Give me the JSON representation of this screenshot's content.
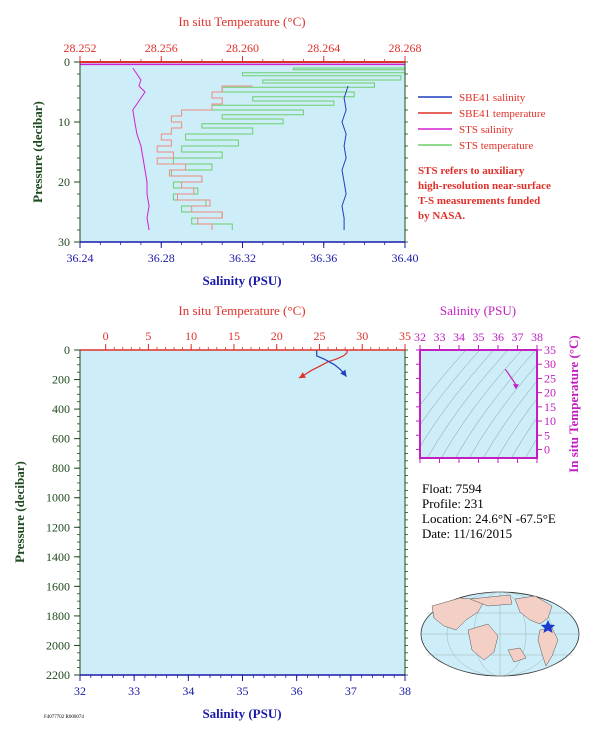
{
  "top_chart": {
    "top_axis_label": "In situ Temperature (°C)",
    "bottom_axis_label": "Salinity (PSU)",
    "left_axis_label": "Pressure (decibar)",
    "temp_ticks": [
      "28.252",
      "28.256",
      "28.260",
      "28.264",
      "28.268"
    ],
    "sal_ticks": [
      "36.24",
      "36.28",
      "36.32",
      "36.36",
      "36.40"
    ],
    "pres_ticks": [
      "0",
      "10",
      "20",
      "30"
    ],
    "legend": [
      {
        "label": "SBE41 salinity",
        "color": "#1f3fbf"
      },
      {
        "label": "SBE41 temperature",
        "color": "#e0302a"
      },
      {
        "label": "STS salinity",
        "color": "#d21ed2"
      },
      {
        "label": "STS temperature",
        "color": "#6ccf6c"
      }
    ],
    "note": [
      "STS refers to auxiliary",
      "high-resolution near-surface",
      "T-S measurements funded",
      "by NASA."
    ]
  },
  "bottom_chart": {
    "top_axis_label": "In situ Temperature (°C)",
    "bottom_axis_label": "Salinity (PSU)",
    "left_axis_label": "Pressure (decibar)",
    "temp_ticks": [
      "0",
      "5",
      "10",
      "15",
      "20",
      "25",
      "30",
      "35"
    ],
    "sal_ticks": [
      "32",
      "33",
      "34",
      "35",
      "36",
      "37",
      "38"
    ],
    "pres_ticks": [
      "0",
      "200",
      "400",
      "600",
      "800",
      "1000",
      "1200",
      "1400",
      "1600",
      "1800",
      "2000",
      "2200"
    ]
  },
  "ts_inset": {
    "top_axis_label": "Salinity (PSU)",
    "right_axis_label": "In situ Temperature (°C)",
    "sal_ticks": [
      "32",
      "33",
      "34",
      "35",
      "36",
      "37",
      "38"
    ],
    "temp_ticks": [
      "0",
      "5",
      "10",
      "15",
      "20",
      "25",
      "30",
      "35"
    ]
  },
  "float_info": {
    "float": "Float:  7594",
    "profile": "Profile:  231",
    "location": "Location:  24.6°N  -67.5°E",
    "date": "Date:  11/16/2015"
  },
  "footer_code": "F4077702 R000074",
  "colors": {
    "plot_bg": "#cdeef8",
    "temp_axis": "#e0302a",
    "sal_axis": "#1a1aa8",
    "pres_axis": "#1f4a1f",
    "inset_axis": "#c21ec2",
    "sbe_sal": "#1f3fbf",
    "sbe_temp": "#e0302a",
    "sts_sal": "#d21ed2",
    "sts_temp": "#6ccf6c",
    "sbe_temp_top": "#f08a82"
  },
  "chart_data": [
    {
      "type": "line",
      "id": "top-near-surface",
      "xlabel_top": "In situ Temperature (°C)",
      "xlabel_bottom": "Salinity (PSU)",
      "ylabel": "Pressure (decibar)",
      "temp_range": [
        28.252,
        28.268
      ],
      "sal_range": [
        36.24,
        36.4
      ],
      "pres_range": [
        0,
        30
      ],
      "series": [
        {
          "name": "SBE41 salinity",
          "axis": "salinity",
          "points": [
            [
              36.372,
              4
            ],
            [
              36.37,
              6
            ],
            [
              36.371,
              8
            ],
            [
              36.369,
              10
            ],
            [
              36.371,
              12
            ],
            [
              36.37,
              14
            ],
            [
              36.371,
              16
            ],
            [
              36.369,
              18
            ],
            [
              36.37,
              20
            ],
            [
              36.371,
              22
            ],
            [
              36.369,
              24
            ],
            [
              36.37,
              26
            ],
            [
              36.37,
              28
            ]
          ]
        },
        {
          "name": "SBE41 temperature",
          "axis": "temperature",
          "points": [
            [
              28.2605,
              4
            ],
            [
              28.259,
              5
            ],
            [
              28.2585,
              6
            ],
            [
              28.259,
              7
            ],
            [
              28.2585,
              8
            ],
            [
              28.257,
              9
            ],
            [
              28.2565,
              10
            ],
            [
              28.257,
              11
            ],
            [
              28.2565,
              12
            ],
            [
              28.256,
              13
            ],
            [
              28.2565,
              14
            ],
            [
              28.2558,
              15
            ],
            [
              28.2566,
              16
            ],
            [
              28.2558,
              17
            ],
            [
              28.2572,
              18
            ],
            [
              28.2564,
              19
            ],
            [
              28.258,
              20
            ],
            [
              28.257,
              21
            ],
            [
              28.2576,
              22
            ],
            [
              28.2568,
              23
            ],
            [
              28.2584,
              24
            ],
            [
              28.2575,
              25
            ],
            [
              28.259,
              26
            ],
            [
              28.2578,
              27
            ],
            [
              28.2585,
              28
            ]
          ]
        },
        {
          "name": "STS salinity",
          "axis": "salinity",
          "points": [
            [
              36.266,
              1
            ],
            [
              36.268,
              2
            ],
            [
              36.27,
              3
            ],
            [
              36.269,
              4
            ],
            [
              36.272,
              5
            ],
            [
              36.27,
              6
            ],
            [
              36.268,
              7
            ],
            [
              36.266,
              8
            ],
            [
              36.267,
              10
            ],
            [
              36.268,
              12
            ],
            [
              36.27,
              14
            ],
            [
              36.271,
              16
            ],
            [
              36.272,
              18
            ],
            [
              36.273,
              20
            ],
            [
              36.273,
              22
            ],
            [
              36.274,
              24
            ],
            [
              36.273,
              26
            ],
            [
              36.274,
              28
            ]
          ]
        },
        {
          "name": "STS temperature",
          "axis": "temperature",
          "points": [
            [
              28.268,
              1
            ],
            [
              28.2625,
              1.3
            ],
            [
              28.268,
              1.8
            ],
            [
              28.26,
              2.3
            ],
            [
              28.2678,
              3
            ],
            [
              28.261,
              3.5
            ],
            [
              28.2665,
              4.2
            ],
            [
              28.259,
              5
            ],
            [
              28.2655,
              5.8
            ],
            [
              28.2605,
              6.5
            ],
            [
              28.2645,
              7.2
            ],
            [
              28.2585,
              8
            ],
            [
              28.263,
              8.8
            ],
            [
              28.259,
              9.5
            ],
            [
              28.262,
              10.3
            ],
            [
              28.258,
              11
            ],
            [
              28.2605,
              12
            ],
            [
              28.2572,
              13
            ],
            [
              28.2598,
              14
            ],
            [
              28.257,
              15
            ],
            [
              28.259,
              16
            ],
            [
              28.2566,
              17
            ],
            [
              28.2585,
              18
            ],
            [
              28.2565,
              19
            ],
            [
              28.258,
              20
            ],
            [
              28.2566,
              21
            ],
            [
              28.2578,
              22
            ],
            [
              28.2566,
              23
            ],
            [
              28.2582,
              24
            ],
            [
              28.257,
              25
            ],
            [
              28.259,
              26
            ],
            [
              28.2575,
              27
            ],
            [
              28.2595,
              28
            ]
          ]
        }
      ]
    },
    {
      "type": "line",
      "id": "bottom-full-profile",
      "xlabel_top": "In situ Temperature (°C)",
      "xlabel_bottom": "Salinity (PSU)",
      "ylabel": "Pressure (decibar)",
      "temp_range": [
        -3,
        35
      ],
      "sal_range": [
        32,
        38
      ],
      "pres_range": [
        0,
        2200
      ],
      "series": [
        {
          "name": "SBE41 temperature",
          "axis": "temperature",
          "points": [
            [
              28.25,
              0
            ],
            [
              28.2,
              20
            ],
            [
              27.8,
              40
            ],
            [
              27.0,
              60
            ],
            [
              26.0,
              80
            ],
            [
              25.0,
              110
            ],
            [
              24.0,
              140
            ],
            [
              23.2,
              170
            ],
            [
              22.6,
              190
            ]
          ]
        },
        {
          "name": "SBE41 salinity",
          "axis": "salinity",
          "points": [
            [
              36.37,
              0
            ],
            [
              36.37,
              40
            ],
            [
              36.5,
              60
            ],
            [
              36.6,
              80
            ],
            [
              36.7,
              100
            ],
            [
              36.8,
              130
            ],
            [
              36.88,
              160
            ],
            [
              36.92,
              180
            ]
          ]
        }
      ]
    },
    {
      "type": "scatter",
      "id": "ts-inset",
      "xlabel": "Salinity (PSU)",
      "ylabel": "In situ Temperature (°C)",
      "xlim": [
        32,
        38
      ],
      "ylim": [
        -3,
        35
      ],
      "series": [
        {
          "name": "T-S profile",
          "points": [
            [
              36.37,
              28.25
            ],
            [
              36.5,
              27.0
            ],
            [
              36.6,
              26.0
            ],
            [
              36.7,
              25.0
            ],
            [
              36.8,
              24.0
            ],
            [
              36.88,
              23.2
            ],
            [
              36.92,
              22.6
            ]
          ]
        }
      ]
    }
  ]
}
